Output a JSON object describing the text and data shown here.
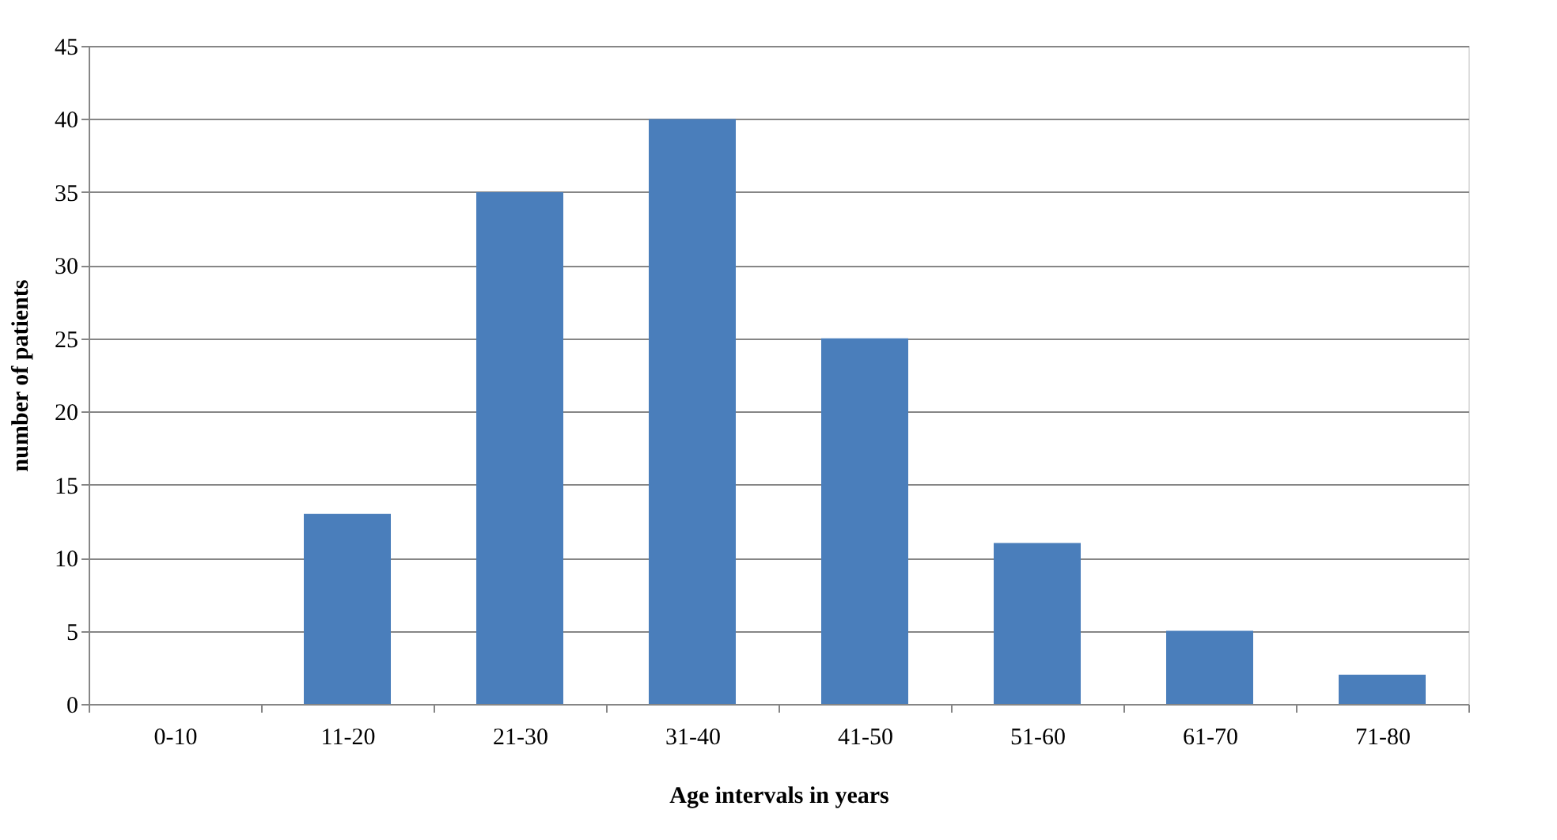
{
  "chart_data": {
    "type": "bar",
    "categories": [
      "0-10",
      "11-20",
      "21-30",
      "31-40",
      "41-50",
      "51-60",
      "61-70",
      "71-80"
    ],
    "values": [
      0,
      13,
      35,
      40,
      25,
      11,
      5,
      2
    ],
    "color": "#4a7ebb",
    "xlabel": "Age intervals in years",
    "ylabel": "number of patients",
    "ylim": [
      0,
      45
    ],
    "yticks": [
      0,
      5,
      10,
      15,
      20,
      25,
      30,
      35,
      40,
      45
    ],
    "grid": "y"
  }
}
